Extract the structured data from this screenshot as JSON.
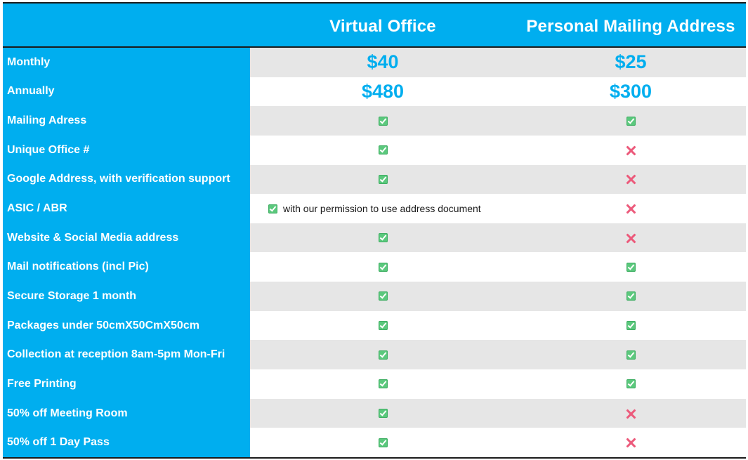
{
  "header": {
    "virtual_office": "Virtual Office",
    "personal_mailing": "Personal Mailing Address"
  },
  "colors": {
    "accent": "#00aeef",
    "check": "#5ac87c",
    "cross": "#ec5a7b",
    "shade": "#e6e6e6"
  },
  "rows": [
    {
      "label": "Monthly",
      "vo": "$40",
      "pma": "$25"
    },
    {
      "label": "Annually",
      "vo": "$480",
      "pma": "$300"
    },
    {
      "label": "Mailing Adress",
      "vo": "check-icon",
      "pma": "check-icon"
    },
    {
      "label": "Unique Office #",
      "vo": "check-icon",
      "pma": "cross-icon"
    },
    {
      "label": "Google Address, with verification support",
      "vo": "check-icon",
      "pma": "cross-icon"
    },
    {
      "label": "ASIC / ABR",
      "vo": "check-icon",
      "vo_note": "with our permission to use address document",
      "pma": "cross-icon"
    },
    {
      "label": "Website & Social Media address",
      "vo": "check-icon",
      "pma": "cross-icon"
    },
    {
      "label": "Mail notifications (incl Pic)",
      "vo": "check-icon",
      "pma": "check-icon"
    },
    {
      "label": "Secure Storage 1 month",
      "vo": "check-icon",
      "pma": "check-icon"
    },
    {
      "label": "Packages under 50cmX50CmX50cm",
      "vo": "check-icon",
      "pma": "check-icon"
    },
    {
      "label": "Collection at reception 8am-5pm Mon-Fri",
      "vo": "check-icon",
      "pma": "check-icon"
    },
    {
      "label": "Free Printing",
      "vo": "check-icon",
      "pma": "check-icon"
    },
    {
      "label": "50% off Meeting Room",
      "vo": "check-icon",
      "pma": "cross-icon"
    },
    {
      "label": "50% off 1 Day Pass",
      "vo": "check-icon",
      "pma": "cross-icon"
    }
  ]
}
